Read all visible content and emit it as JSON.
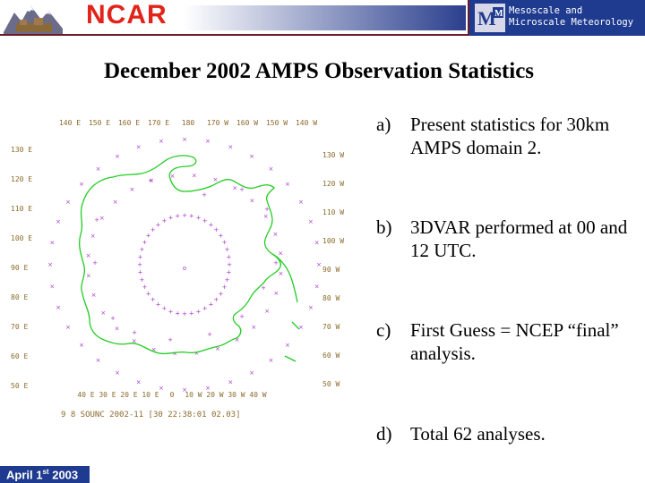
{
  "header": {
    "org_name": "NCAR",
    "division_line1": "Mesoscale and",
    "division_line2": "Microscale Meteorology"
  },
  "slide": {
    "title": "December 2002 AMPS Observation Statistics",
    "bullets": [
      {
        "letter": "a)",
        "text": "Present statistics for 30km AMPS domain 2."
      },
      {
        "letter": "b)",
        "text": "3DVAR performed at 00 and 12 UTC."
      },
      {
        "letter": "c)",
        "text": "First Guess = NCEP “final” analysis."
      },
      {
        "letter": "d)",
        "text": "Total 62 analyses."
      }
    ]
  },
  "map": {
    "top_labels": [
      "140 E",
      "150 E",
      "160 E",
      "170 E",
      "180",
      "170 W",
      "160 W",
      "150 W",
      "140 W"
    ],
    "bottom_labels": [
      "40 E",
      "30 E",
      "20 E",
      "10 E",
      "0",
      "10 W",
      "20 W",
      "30 W",
      "40 W"
    ],
    "left_labels": [
      "130 E",
      "120 E",
      "110 E",
      "100 E",
      "90 E",
      "80 E",
      "70 E",
      "60 E",
      "50 E"
    ],
    "right_labels": [
      "130 W",
      "120 W",
      "110 W",
      "100 W",
      "90 W",
      "80 W",
      "70 W",
      "60 W",
      "50 W"
    ],
    "caption": "9   8   SOUNC   2002-11   [30 22:38:01 02.03]",
    "coast_color": "#22cc22",
    "marker_color": "#aa33cc",
    "label_color": "#8a6a2a"
  },
  "footer": {
    "date_main": "April 1",
    "date_sup": "st",
    "date_year": "2003"
  }
}
